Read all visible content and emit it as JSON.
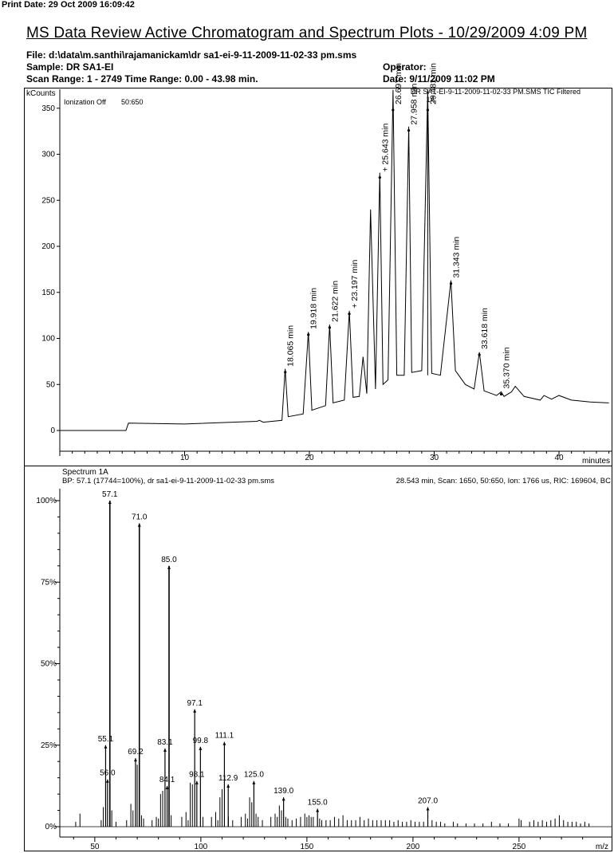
{
  "print_date": "Print Date:  29 Oct 2009 16:09:42",
  "title": "MS Data Review Active Chromatogram and Spectrum Plots - 10/29/2009 4:09 PM",
  "header": {
    "file": "File: d:\\data\\m.santhi\\rajamanickam\\dr sa1-ei-9-11-2009-11-02-33 pm.sms",
    "sample": "Sample: DR SA1-EI",
    "operator": "Operator:",
    "scan_range": "Scan Range: 1 - 2749 Time Range: 0.00 - 43.98 min.",
    "date": "Date: 9/11/2009 11:02 PM"
  },
  "chromatogram": {
    "y_unit": "kCounts",
    "ionization": "Ionization Off",
    "mass_range": "50:650",
    "trace_label": "DR SA1-EI-9-11-2009-11-02-33 PM.SMS TIC Filtered",
    "marker_label": "1A",
    "x_unit": "minutes",
    "x_ticks": [
      "10",
      "20",
      "30",
      "40"
    ],
    "y_ticks": [
      "0",
      "50",
      "100",
      "150",
      "200",
      "250",
      "300",
      "350"
    ]
  },
  "spectrum": {
    "title": "Spectrum 1A",
    "bp_info": "BP: 57.1 (17744=100%), dr sa1-ei-9-11-2009-11-02-33 pm.sms",
    "scan_info": "28.543 min, Scan: 1650, 50:650, Ion: 1766 us, RIC: 169604, BC",
    "x_unit": "m/z",
    "x_ticks": [
      "50",
      "100",
      "150",
      "200",
      "250"
    ],
    "y_ticks": [
      "0%",
      "25%",
      "50%",
      "75%",
      "100%"
    ]
  },
  "chart_data": [
    {
      "type": "line",
      "title": "DR SA1-EI-9-11-2009-11-02-33 PM.SMS TIC Filtered",
      "xlabel": "minutes",
      "ylabel": "kCounts",
      "xlim": [
        0,
        44
      ],
      "ylim": [
        0,
        360
      ],
      "grid": false,
      "series": [
        {
          "x": [
            0,
            5.3,
            5.5,
            10,
            15.8,
            16.0,
            16.3,
            17.8,
            18.06,
            18.3,
            19.5,
            19.92,
            20.2,
            21.3,
            21.62,
            21.9,
            22.8,
            23.2,
            23.5,
            24.0,
            24.3,
            24.6,
            24.9,
            25.3,
            25.64,
            25.9,
            26.3,
            26.7,
            27.0,
            27.6,
            27.96,
            28.2,
            29.0,
            29.48,
            29.8,
            30.5,
            31.34,
            31.7,
            32.5,
            33.2,
            33.62,
            34.0,
            35.0,
            35.37,
            35.6,
            36.2,
            36.5,
            37.2,
            38.5,
            38.8,
            39.4,
            40.0,
            41.0,
            42.5,
            44
          ],
          "y": [
            0,
            0,
            8,
            7,
            10,
            11,
            9,
            11,
            67,
            15,
            18,
            107,
            22,
            27,
            115,
            30,
            33,
            130,
            36,
            37,
            80,
            40,
            240,
            45,
            280,
            50,
            55,
            370,
            60,
            60,
            330,
            63,
            65,
            375,
            62,
            60,
            163,
            65,
            50,
            45,
            85,
            43,
            38,
            42,
            37,
            42,
            48,
            37,
            33,
            38,
            34,
            38,
            33,
            31,
            30
          ],
          "peak_labels": [
            {
              "rt": 18.065,
              "label": "18.065 min"
            },
            {
              "rt": 19.918,
              "label": "19.918 min"
            },
            {
              "rt": 21.622,
              "label": "21.622 min"
            },
            {
              "rt": 23.197,
              "label": "+ 23.197 min"
            },
            {
              "rt": 25.643,
              "label": "+ 25.643 min"
            },
            {
              "rt": 26.697,
              "label": "26.697 min"
            },
            {
              "rt": 27.958,
              "label": "27.958 min"
            },
            {
              "rt": 29.481,
              "label": "29.481 min"
            },
            {
              "rt": 31.343,
              "label": "31.343 min"
            },
            {
              "rt": 33.618,
              "label": "33.618 min"
            },
            {
              "rt": 35.37,
              "label": "35.370 min"
            }
          ]
        }
      ]
    },
    {
      "type": "bar",
      "title": "Spectrum 1A",
      "xlabel": "m/z",
      "ylabel": "",
      "xlim": [
        33,
        287
      ],
      "ylim": [
        0,
        100
      ],
      "labeled_peaks": [
        {
          "mz": 55.1,
          "intensity": 25,
          "label": "55.1"
        },
        {
          "mz": 56.0,
          "intensity": 14.5,
          "label": "56.0"
        },
        {
          "mz": 57.1,
          "intensity": 100,
          "label": "57.1"
        },
        {
          "mz": 69.2,
          "intensity": 21,
          "label": "69.2"
        },
        {
          "mz": 71.0,
          "intensity": 93,
          "label": "71.0"
        },
        {
          "mz": 83.1,
          "intensity": 24,
          "label": "83.1"
        },
        {
          "mz": 84.1,
          "intensity": 12.5,
          "label": "84.1"
        },
        {
          "mz": 85.0,
          "intensity": 80,
          "label": "85.0"
        },
        {
          "mz": 97.1,
          "intensity": 36,
          "label": "97.1"
        },
        {
          "mz": 98.1,
          "intensity": 14,
          "label": "98.1"
        },
        {
          "mz": 99.8,
          "intensity": 24.5,
          "label": "99.8"
        },
        {
          "mz": 111.1,
          "intensity": 26,
          "label": "111.1"
        },
        {
          "mz": 112.9,
          "intensity": 13,
          "label": "112.9"
        },
        {
          "mz": 125.0,
          "intensity": 14,
          "label": "125.0"
        },
        {
          "mz": 139.0,
          "intensity": 9,
          "label": "139.0"
        },
        {
          "mz": 155.0,
          "intensity": 5.5,
          "label": "155.0"
        },
        {
          "mz": 207.0,
          "intensity": 6,
          "label": "207.0"
        }
      ],
      "minor_peaks": [
        [
          41,
          1.5
        ],
        [
          43,
          4
        ],
        [
          53,
          2
        ],
        [
          54,
          6
        ],
        [
          58,
          5
        ],
        [
          60,
          1.5
        ],
        [
          65,
          2
        ],
        [
          67,
          7
        ],
        [
          68,
          5
        ],
        [
          70,
          19
        ],
        [
          72,
          3.5
        ],
        [
          73,
          2.5
        ],
        [
          77,
          2
        ],
        [
          79,
          3
        ],
        [
          80,
          2.5
        ],
        [
          81,
          10
        ],
        [
          82,
          11
        ],
        [
          86,
          3.5
        ],
        [
          91,
          3
        ],
        [
          93,
          4.5
        ],
        [
          94,
          2
        ],
        [
          95,
          13.5
        ],
        [
          96,
          13
        ],
        [
          101,
          3
        ],
        [
          105,
          3
        ],
        [
          107,
          4.5
        ],
        [
          108,
          2
        ],
        [
          109,
          9
        ],
        [
          110,
          11.5
        ],
        [
          113,
          3
        ],
        [
          115,
          2
        ],
        [
          119,
          3
        ],
        [
          121,
          4
        ],
        [
          122,
          2.5
        ],
        [
          123,
          9
        ],
        [
          124,
          7.5
        ],
        [
          126,
          4
        ],
        [
          127,
          3
        ],
        [
          129,
          2
        ],
        [
          133,
          3
        ],
        [
          135,
          4
        ],
        [
          136,
          3
        ],
        [
          137,
          6.5
        ],
        [
          138,
          5
        ],
        [
          140,
          3
        ],
        [
          141,
          2.5
        ],
        [
          143,
          2
        ],
        [
          145,
          2.5
        ],
        [
          147,
          3
        ],
        [
          149,
          4
        ],
        [
          150,
          3
        ],
        [
          151,
          3.5
        ],
        [
          152,
          3
        ],
        [
          153,
          3
        ],
        [
          156,
          2.5
        ],
        [
          157,
          2
        ],
        [
          159,
          2
        ],
        [
          161,
          2
        ],
        [
          163,
          3
        ],
        [
          165,
          2.5
        ],
        [
          167,
          3.5
        ],
        [
          169,
          2
        ],
        [
          171,
          2
        ],
        [
          173,
          2
        ],
        [
          175,
          3
        ],
        [
          177,
          2
        ],
        [
          179,
          2.5
        ],
        [
          181,
          2
        ],
        [
          183,
          2
        ],
        [
          185,
          2
        ],
        [
          187,
          2
        ],
        [
          189,
          2
        ],
        [
          191,
          1.5
        ],
        [
          193,
          2
        ],
        [
          195,
          1.5
        ],
        [
          197,
          1.5
        ],
        [
          199,
          2
        ],
        [
          201,
          1.5
        ],
        [
          203,
          1.5
        ],
        [
          205,
          1.5
        ],
        [
          209,
          2
        ],
        [
          211,
          1.5
        ],
        [
          213,
          1.5
        ],
        [
          215,
          1
        ],
        [
          219,
          1.5
        ],
        [
          221,
          1
        ],
        [
          225,
          1
        ],
        [
          229,
          1
        ],
        [
          233,
          1
        ],
        [
          237,
          1.5
        ],
        [
          241,
          1
        ],
        [
          245,
          1
        ],
        [
          250,
          2.5
        ],
        [
          251,
          2
        ],
        [
          255,
          1.5
        ],
        [
          257,
          2
        ],
        [
          259,
          1.5
        ],
        [
          261,
          2
        ],
        [
          263,
          1.5
        ],
        [
          265,
          2
        ],
        [
          267,
          2.5
        ],
        [
          269,
          3.5
        ],
        [
          271,
          2
        ],
        [
          273,
          1.5
        ],
        [
          275,
          1.5
        ],
        [
          277,
          1.5
        ],
        [
          279,
          1
        ],
        [
          281,
          1.5
        ],
        [
          283,
          1
        ]
      ]
    }
  ]
}
